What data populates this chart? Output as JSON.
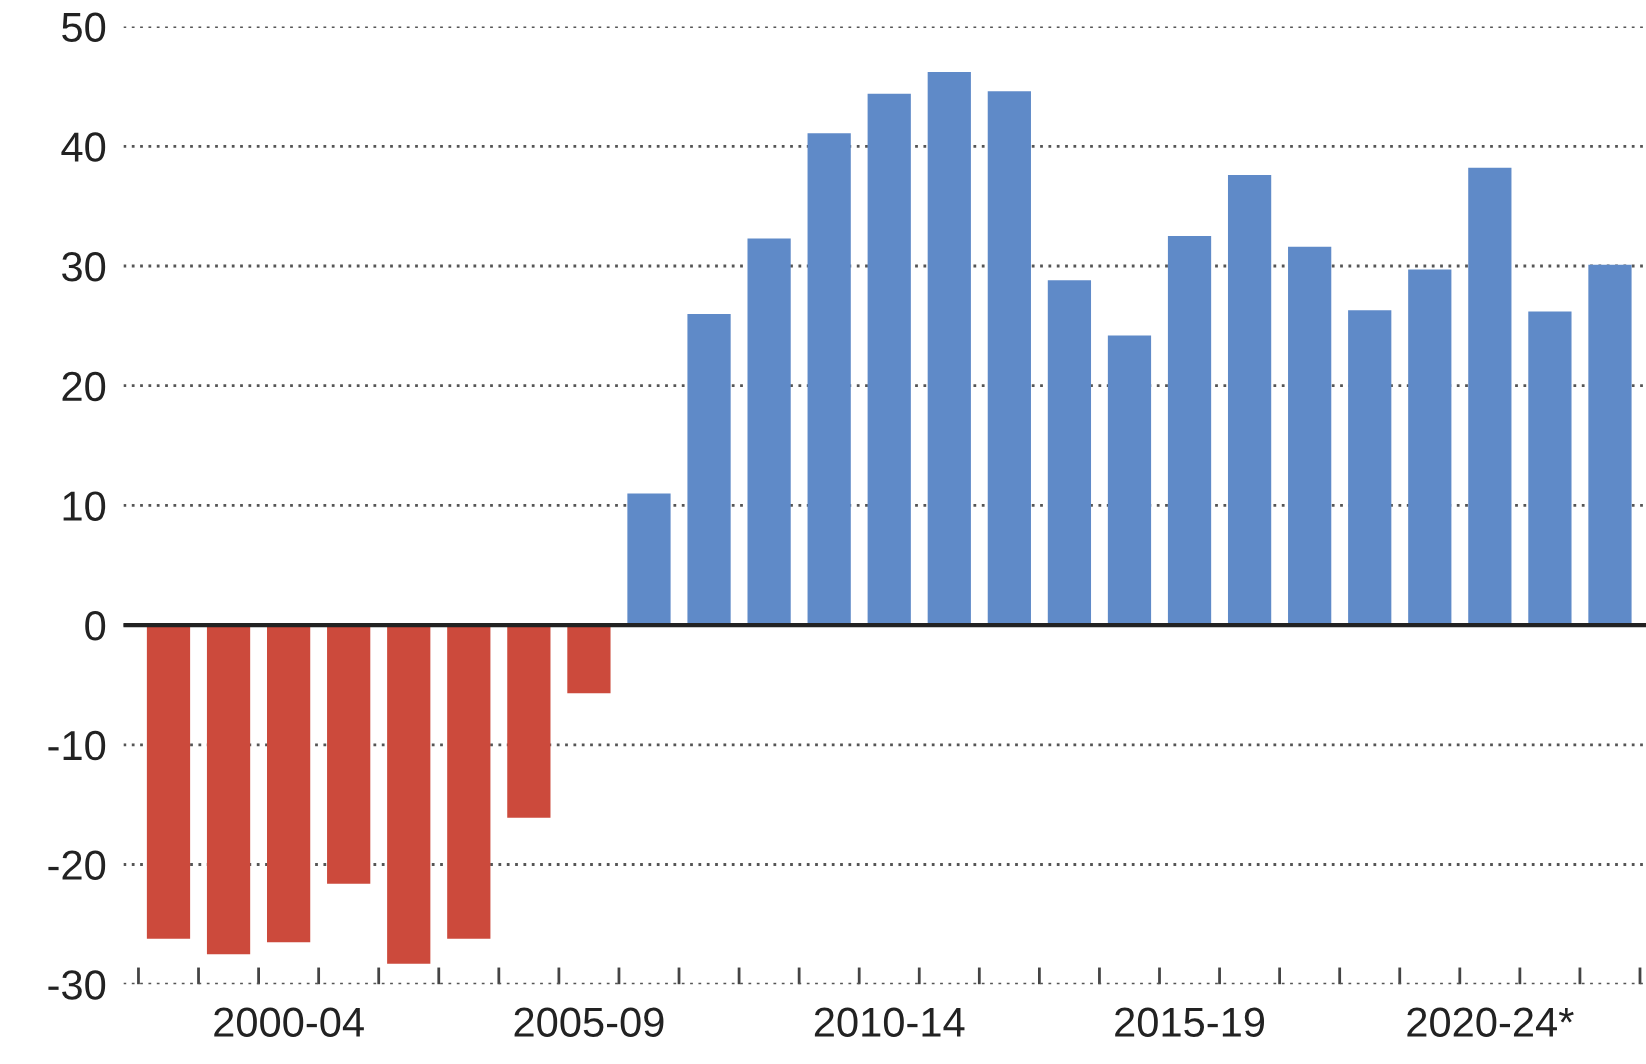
{
  "chart_data": {
    "type": "bar",
    "categories": [
      null,
      null,
      "2000-04",
      null,
      null,
      null,
      null,
      "2005-09",
      null,
      null,
      null,
      null,
      "2010-14",
      null,
      null,
      null,
      null,
      "2015-19",
      null,
      null,
      null,
      null,
      "2020-24*",
      null,
      null
    ],
    "values": [
      -26.2,
      -27.5,
      -26.5,
      -21.6,
      -28.3,
      -26.2,
      -16.1,
      -5.7,
      11.0,
      26.0,
      32.3,
      41.1,
      44.4,
      46.2,
      44.6,
      28.8,
      24.2,
      32.5,
      37.6,
      31.6,
      26.3,
      29.7,
      38.2,
      26.2,
      30.1
    ],
    "colors": [
      "#cc4a3c",
      "#cc4a3c",
      "#cc4a3c",
      "#cc4a3c",
      "#cc4a3c",
      "#cc4a3c",
      "#cc4a3c",
      "#cc4a3c",
      "#5f8ac8",
      "#5f8ac8",
      "#5f8ac8",
      "#5f8ac8",
      "#5f8ac8",
      "#5f8ac8",
      "#5f8ac8",
      "#5f8ac8",
      "#5f8ac8",
      "#5f8ac8",
      "#5f8ac8",
      "#5f8ac8",
      "#5f8ac8",
      "#5f8ac8",
      "#5f8ac8",
      "#5f8ac8",
      "#5f8ac8"
    ],
    "ylim": [
      -30,
      50
    ],
    "yticks": [
      -30,
      -20,
      -10,
      0,
      10,
      20,
      30,
      40,
      50
    ],
    "grid": "y"
  }
}
